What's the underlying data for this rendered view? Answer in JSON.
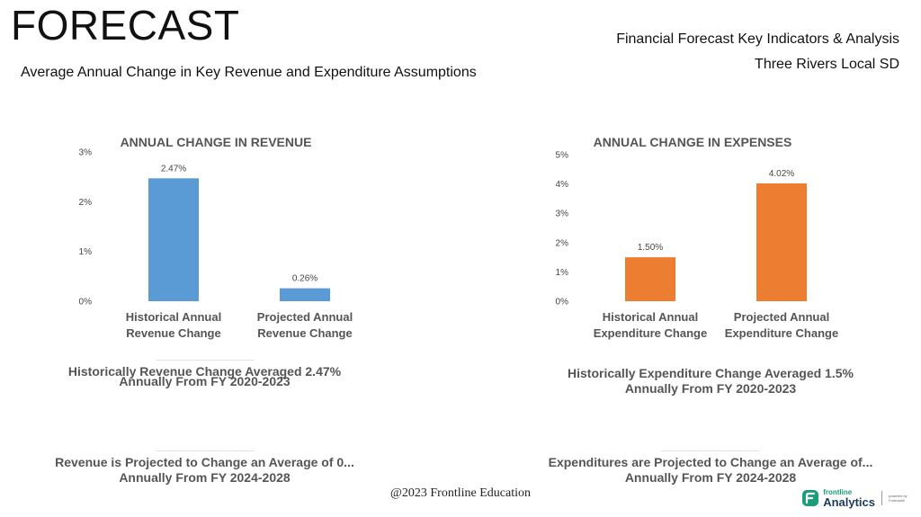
{
  "header": {
    "page_title": "FORECAST",
    "report_title": "Financial Forecast Key Indicators & Analysis",
    "district": "Three Rivers Local SD",
    "subtitle": "Average Annual Change in Key Revenue and Expenditure Assumptions"
  },
  "chart_data": [
    {
      "type": "bar",
      "title": "ANNUAL CHANGE IN REVENUE",
      "categories": [
        "Historical Annual\nRevenue Change",
        "Projected Annual\nRevenue Change"
      ],
      "values": [
        2.47,
        0.26
      ],
      "data_labels": [
        "2.47%",
        "0.26%"
      ],
      "ylim": [
        0,
        3
      ],
      "yticks": [
        "0%",
        "1%",
        "2%",
        "3%"
      ],
      "color": "#5b9bd5",
      "grid": false
    },
    {
      "type": "bar",
      "title": "ANNUAL CHANGE IN EXPENSES",
      "categories": [
        "Historical Annual\nExpenditure Change",
        "Projected Annual\nExpenditure Change"
      ],
      "values": [
        1.5,
        4.02
      ],
      "data_labels": [
        "1.50%",
        "4.02%"
      ],
      "ylim": [
        0,
        5
      ],
      "yticks": [
        "0%",
        "1%",
        "2%",
        "3%",
        "4%",
        "5%"
      ],
      "color": "#ed7d31",
      "grid": false
    }
  ],
  "notes": {
    "revenue_historical": [
      "Historically Revenue Change Averaged 2.47%",
      "Annually From FY 2020-2023"
    ],
    "expense_historical": [
      "Historically Expenditure Change Averaged 1.5%",
      "Annually From FY 2020-2023"
    ],
    "revenue_projected": [
      "Revenue is Projected to Change an Average of 0...",
      "Annually From FY 2024-2028"
    ],
    "expense_projected": [
      "Expenditures are Projected to Change an Average of...",
      "Annually From FY 2024-2028"
    ]
  },
  "footer": {
    "copyright": "@2023 Frontline Education",
    "logo_line1": "frontline",
    "logo_line2": "Analytics",
    "logo_tagline": "powered by Forecast5"
  }
}
